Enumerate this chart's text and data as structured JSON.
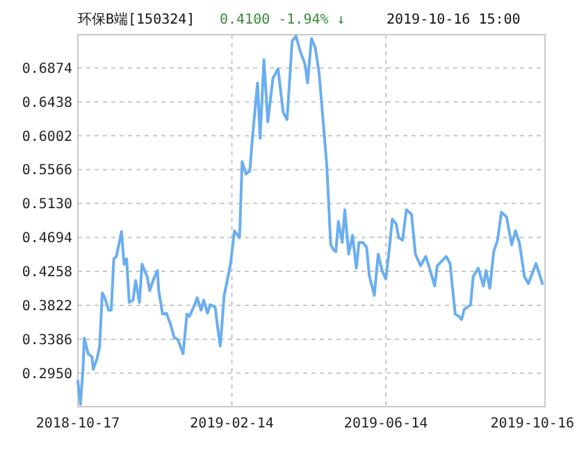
{
  "chart_data": {
    "type": "line",
    "title": "环保B端[150324]",
    "subtitle": "0.4100 -1.94% ↓",
    "annotations": [
      "2019-10-16 15:00"
    ],
    "xlim": [
      "2018-10-17",
      "2019-10-16"
    ],
    "xticks": [
      "2018-10-17",
      "2019-02-14",
      "2019-06-14",
      "2019-10-16"
    ],
    "ylim": [
      0.252,
      0.73
    ],
    "yticks": [
      {
        "value": 0.295,
        "label": "0.2950"
      },
      {
        "value": 0.3386,
        "label": "0.3386"
      },
      {
        "value": 0.3822,
        "label": "0.3822"
      },
      {
        "value": 0.4258,
        "label": "0.4258"
      },
      {
        "value": 0.4694,
        "label": "0.4694"
      },
      {
        "value": 0.513,
        "label": "0.5130"
      },
      {
        "value": 0.5566,
        "label": "0.5566"
      },
      {
        "value": 0.6002,
        "label": "0.6002"
      },
      {
        "value": 0.6438,
        "label": "0.6438"
      },
      {
        "value": 0.6874,
        "label": "0.6874"
      }
    ],
    "grid": true,
    "marker": "none",
    "line_style": "solid",
    "series": [
      {
        "color": "#6aaef0",
        "x": [
          "2018-10-17",
          "2018-10-19",
          "2018-10-21",
          "2018-10-22",
          "2018-10-25",
          "2018-10-28",
          "2018-10-29",
          "2018-11-01",
          "2018-11-03",
          "2018-11-05",
          "2018-11-07",
          "2018-11-10",
          "2018-11-12",
          "2018-11-14",
          "2018-11-16",
          "2018-11-20",
          "2018-11-22",
          "2018-11-24",
          "2018-11-26",
          "2018-11-29",
          "2018-12-01",
          "2018-12-04",
          "2018-12-06",
          "2018-12-10",
          "2018-12-12",
          "2018-12-15",
          "2018-12-18",
          "2018-12-19",
          "2018-12-22",
          "2018-12-25",
          "2018-12-28",
          "2018-12-31",
          "2019-01-03",
          "2019-01-07",
          "2019-01-10",
          "2019-01-12",
          "2019-01-16",
          "2019-01-18",
          "2019-01-21",
          "2019-01-23",
          "2019-01-26",
          "2019-01-28",
          "2019-02-01",
          "2019-02-03",
          "2019-02-05",
          "2019-02-08",
          "2019-02-11",
          "2019-02-13",
          "2019-02-16",
          "2019-02-20",
          "2019-02-22",
          "2019-02-25",
          "2019-02-28",
          "2019-03-02",
          "2019-03-06",
          "2019-03-08",
          "2019-03-11",
          "2019-03-14",
          "2019-03-18",
          "2019-03-22",
          "2019-03-26",
          "2019-03-29",
          "2019-04-02",
          "2019-04-05",
          "2019-04-08",
          "2019-04-12",
          "2019-04-14",
          "2019-04-17",
          "2019-04-20",
          "2019-04-23",
          "2019-04-26",
          "2019-04-29",
          "2019-05-02",
          "2019-05-04",
          "2019-05-06",
          "2019-05-08",
          "2019-05-11",
          "2019-05-13",
          "2019-05-16",
          "2019-05-19",
          "2019-05-22",
          "2019-05-24",
          "2019-05-27",
          "2019-05-30",
          "2019-06-01",
          "2019-06-05",
          "2019-06-08",
          "2019-06-11",
          "2019-06-14",
          "2019-06-17",
          "2019-06-19",
          "2019-06-22",
          "2019-06-24",
          "2019-06-27",
          "2019-06-30",
          "2019-07-04",
          "2019-07-07",
          "2019-07-11",
          "2019-07-15",
          "2019-07-18",
          "2019-07-22",
          "2019-07-24",
          "2019-07-31",
          "2019-08-03",
          "2019-08-07",
          "2019-08-10",
          "2019-08-12",
          "2019-08-14",
          "2019-08-19",
          "2019-08-21",
          "2019-08-25",
          "2019-08-29",
          "2019-08-31",
          "2019-09-03",
          "2019-09-06",
          "2019-09-09",
          "2019-09-12",
          "2019-09-16",
          "2019-09-20",
          "2019-09-23",
          "2019-09-26",
          "2019-09-30",
          "2019-10-03",
          "2019-10-09",
          "2019-10-14"
        ],
        "values": [
          0.285,
          0.255,
          0.3,
          0.34,
          0.32,
          0.316,
          0.3,
          0.314,
          0.33,
          0.398,
          0.392,
          0.376,
          0.376,
          0.442,
          0.445,
          0.477,
          0.435,
          0.442,
          0.386,
          0.389,
          0.414,
          0.386,
          0.435,
          0.419,
          0.401,
          0.416,
          0.427,
          0.401,
          0.371,
          0.372,
          0.359,
          0.341,
          0.338,
          0.32,
          0.371,
          0.368,
          0.383,
          0.392,
          0.376,
          0.389,
          0.372,
          0.383,
          0.38,
          0.353,
          0.33,
          0.395,
          0.419,
          0.436,
          0.478,
          0.469,
          0.567,
          0.551,
          0.555,
          0.597,
          0.668,
          0.597,
          0.698,
          0.618,
          0.674,
          0.686,
          0.63,
          0.621,
          0.722,
          0.728,
          0.71,
          0.692,
          0.668,
          0.725,
          0.713,
          0.68,
          0.621,
          0.561,
          0.46,
          0.454,
          0.451,
          0.49,
          0.463,
          0.505,
          0.448,
          0.472,
          0.43,
          0.463,
          0.463,
          0.457,
          0.421,
          0.395,
          0.448,
          0.427,
          0.416,
          0.46,
          0.493,
          0.487,
          0.469,
          0.466,
          0.505,
          0.499,
          0.448,
          0.433,
          0.445,
          0.43,
          0.407,
          0.433,
          0.445,
          0.436,
          0.371,
          0.368,
          0.364,
          0.377,
          0.383,
          0.419,
          0.43,
          0.407,
          0.427,
          0.404,
          0.451,
          0.466,
          0.502,
          0.496,
          0.46,
          0.478,
          0.463,
          0.419,
          0.41,
          0.436,
          0.41
        ]
      }
    ]
  }
}
